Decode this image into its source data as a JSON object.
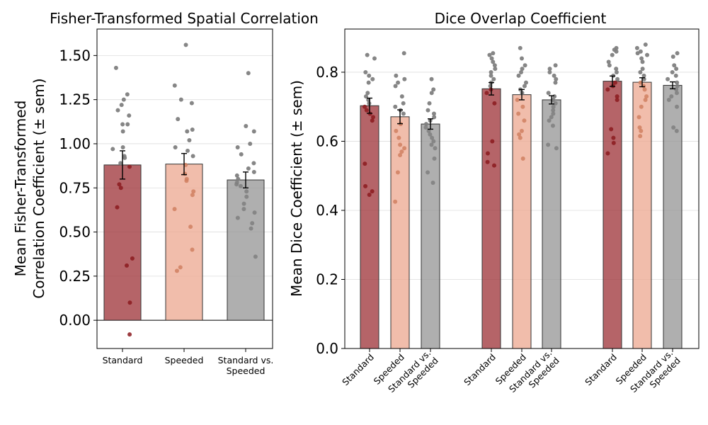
{
  "chart_data": [
    {
      "type": "bar",
      "title": "Fisher-Transformed Spatial Correlation",
      "ylabel": "Mean Fisher-Transformed\nCorrelation Coefficient (± sem)",
      "xlabel": "",
      "ylim": [
        -0.16,
        1.65
      ],
      "yticks": [
        0.0,
        0.25,
        0.5,
        0.75,
        1.0,
        1.25,
        1.5
      ],
      "ytick_labels": [
        "0.00",
        "0.25",
        "0.50",
        "0.75",
        "1.00",
        "1.25",
        "1.50"
      ],
      "grid": "horizontal",
      "zero_line": true,
      "categories": [
        "Standard",
        "Speeded",
        "Standard vs.\nSpeeded"
      ],
      "values": [
        0.88,
        0.885,
        0.795
      ],
      "sem": [
        0.08,
        0.06,
        0.045
      ],
      "colors": [
        "#a0393e",
        "#edaa94",
        "#999999"
      ],
      "dot_colors": [
        "#8b1a1f",
        "#d08060",
        "#7f7f7f"
      ],
      "points": [
        [
          1.43,
          1.28,
          1.25,
          1.22,
          1.19,
          1.16,
          1.11,
          1.11,
          1.07,
          0.98,
          0.97,
          0.93,
          0.92,
          0.89,
          0.87,
          0.77,
          0.75,
          0.64,
          0.35,
          0.31,
          0.1,
          -0.08
        ],
        [
          1.56,
          1.33,
          1.25,
          1.23,
          1.14,
          1.08,
          1.07,
          1.02,
          0.98,
          0.96,
          0.93,
          0.88,
          0.83,
          0.8,
          0.79,
          0.73,
          0.71,
          0.63,
          0.53,
          0.4,
          0.3,
          0.28
        ],
        [
          1.4,
          1.1,
          1.07,
          1.0,
          0.98,
          0.94,
          0.89,
          0.86,
          0.84,
          0.82,
          0.8,
          0.78,
          0.77,
          0.76,
          0.73,
          0.7,
          0.66,
          0.63,
          0.61,
          0.58,
          0.55,
          0.52,
          0.36
        ]
      ]
    },
    {
      "type": "bar",
      "title": "Dice Overlap Coefficient",
      "ylabel": "Mean Dice Coefficient (± sem)",
      "xlabel": "",
      "ylim": [
        0.0,
        0.925
      ],
      "yticks": [
        0.0,
        0.2,
        0.4,
        0.6,
        0.8
      ],
      "ytick_labels": [
        "0.0",
        "0.2",
        "0.4",
        "0.6",
        "0.8"
      ],
      "grid": "horizontal",
      "categories": [
        "Standard",
        "Speeded",
        "Standard vs.\nSpeeded",
        "Standard",
        "Speeded",
        "Standard vs.\nSpeeded",
        "Standard",
        "Speeded",
        "Standard vs.\nSpeeded"
      ],
      "values": [
        0.703,
        0.671,
        0.65,
        0.752,
        0.735,
        0.72,
        0.774,
        0.771,
        0.762
      ],
      "sem": [
        0.022,
        0.02,
        0.015,
        0.018,
        0.015,
        0.012,
        0.015,
        0.013,
        0.01
      ],
      "colors": [
        "#a0393e",
        "#edaa94",
        "#999999",
        "#a0393e",
        "#edaa94",
        "#999999",
        "#a0393e",
        "#edaa94",
        "#999999"
      ],
      "dot_colors": [
        "#8b1a1f",
        "#d08060",
        "#7f7f7f",
        "#8b1a1f",
        "#d08060",
        "#7f7f7f",
        "#8b1a1f",
        "#d08060",
        "#7f7f7f"
      ],
      "points": [
        [
          0.85,
          0.84,
          0.8,
          0.79,
          0.78,
          0.77,
          0.74,
          0.73,
          0.72,
          0.71,
          0.7,
          0.69,
          0.68,
          0.67,
          0.66,
          0.535,
          0.47,
          0.455,
          0.445
        ],
        [
          0.855,
          0.79,
          0.78,
          0.77,
          0.76,
          0.73,
          0.71,
          0.7,
          0.69,
          0.68,
          0.65,
          0.63,
          0.61,
          0.59,
          0.58,
          0.57,
          0.56,
          0.51,
          0.425
        ],
        [
          0.78,
          0.75,
          0.74,
          0.71,
          0.69,
          0.68,
          0.67,
          0.66,
          0.65,
          0.64,
          0.63,
          0.62,
          0.61,
          0.6,
          0.59,
          0.58,
          0.55,
          0.51,
          0.48
        ],
        [
          0.855,
          0.85,
          0.84,
          0.83,
          0.82,
          0.81,
          0.8,
          0.79,
          0.78,
          0.77,
          0.76,
          0.75,
          0.74,
          0.71,
          0.6,
          0.565,
          0.54,
          0.53
        ],
        [
          0.87,
          0.84,
          0.82,
          0.81,
          0.8,
          0.79,
          0.77,
          0.76,
          0.75,
          0.74,
          0.72,
          0.7,
          0.68,
          0.66,
          0.63,
          0.62,
          0.61,
          0.55
        ],
        [
          0.82,
          0.81,
          0.8,
          0.79,
          0.78,
          0.77,
          0.74,
          0.73,
          0.72,
          0.71,
          0.7,
          0.69,
          0.68,
          0.67,
          0.66,
          0.645,
          0.59,
          0.58
        ],
        [
          0.87,
          0.865,
          0.86,
          0.85,
          0.83,
          0.82,
          0.81,
          0.8,
          0.79,
          0.78,
          0.77,
          0.76,
          0.75,
          0.73,
          0.72,
          0.635,
          0.61,
          0.595,
          0.565
        ],
        [
          0.88,
          0.87,
          0.86,
          0.855,
          0.85,
          0.84,
          0.83,
          0.81,
          0.8,
          0.79,
          0.78,
          0.77,
          0.76,
          0.75,
          0.73,
          0.72,
          0.7,
          0.67,
          0.64,
          0.63,
          0.615
        ],
        [
          0.855,
          0.845,
          0.82,
          0.81,
          0.8,
          0.79,
          0.78,
          0.77,
          0.76,
          0.75,
          0.74,
          0.73,
          0.72,
          0.7,
          0.64,
          0.63
        ]
      ]
    }
  ]
}
